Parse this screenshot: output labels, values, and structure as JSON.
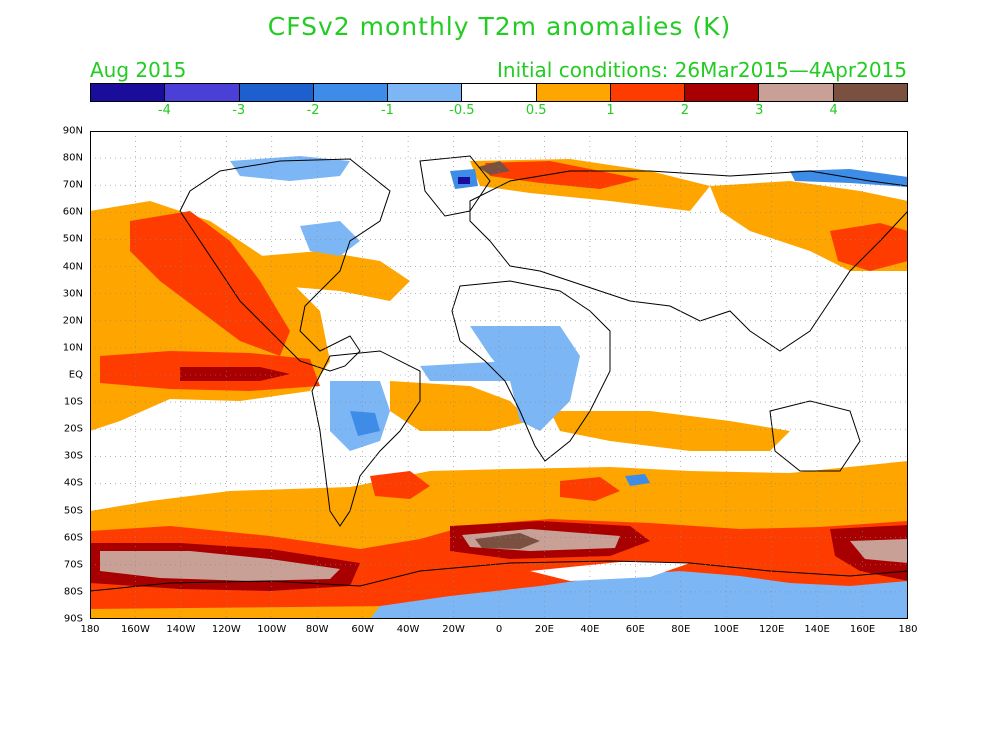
{
  "title": "CFSv2 monthly T2m anomalies (K)",
  "valid_month": "Aug 2015",
  "initial_conditions": "Initial conditions: 26Mar2015—4Apr2015",
  "colorbar": {
    "colors": [
      "#1a0d9c",
      "#4a3fd6",
      "#1e5fd0",
      "#3d8ce8",
      "#7db6f5",
      "#ffffff",
      "#ffa500",
      "#ff3c00",
      "#a80000",
      "#c9a096",
      "#7a5040"
    ],
    "labels": [
      "-4",
      "-3",
      "-2",
      "-1",
      "-0.5",
      "0.5",
      "1",
      "2",
      "3",
      "4"
    ]
  },
  "lat_labels": [
    "90N",
    "80N",
    "70N",
    "60N",
    "50N",
    "40N",
    "30N",
    "20N",
    "10N",
    "EQ",
    "10S",
    "20S",
    "30S",
    "40S",
    "50S",
    "60S",
    "70S",
    "80S",
    "90S"
  ],
  "lon_labels": [
    "180",
    "160W",
    "140W",
    "120W",
    "100W",
    "80W",
    "60W",
    "40W",
    "20W",
    "0",
    "20E",
    "40E",
    "60E",
    "80E",
    "100E",
    "120E",
    "140E",
    "160E",
    "180"
  ],
  "colors": {
    "title": "#22cc22",
    "orange": "#ffa500",
    "red": "#ff3c00",
    "darkred": "#a80000",
    "pink": "#c9a096",
    "brown": "#7a5040",
    "lightblue": "#7db6f5",
    "blue": "#3d8ce8",
    "midblue": "#1e5fd0",
    "darkblue": "#1a0d9c"
  }
}
